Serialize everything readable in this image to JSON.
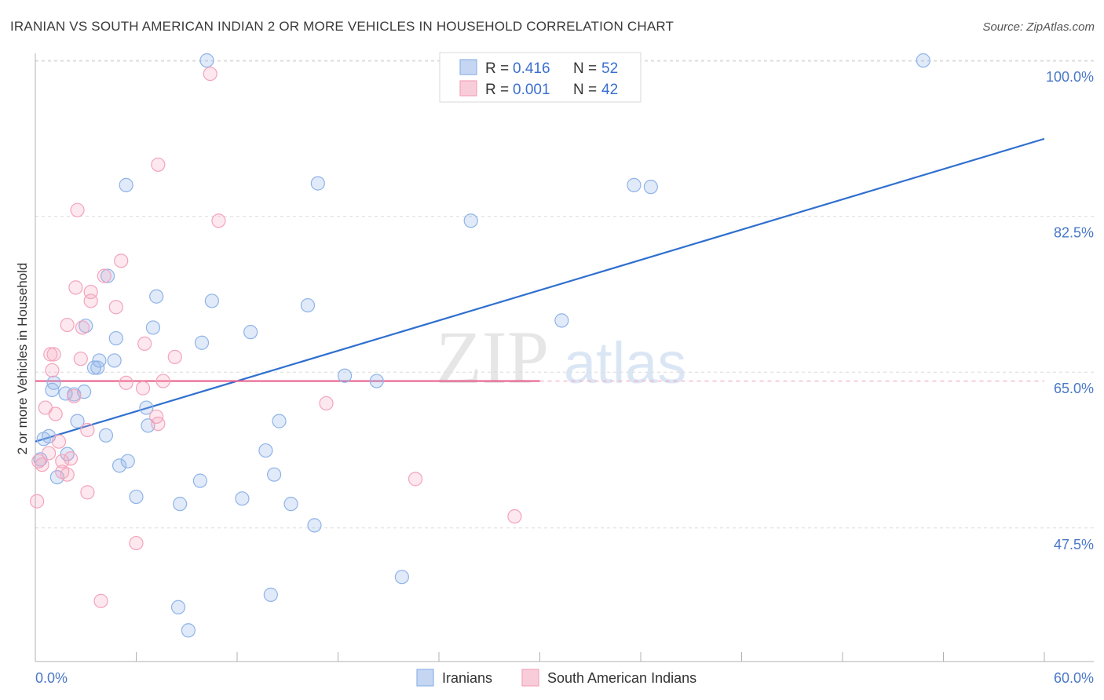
{
  "chart_data": {
    "type": "scatter",
    "title": "IRANIAN VS SOUTH AMERICAN INDIAN 2 OR MORE VEHICLES IN HOUSEHOLD CORRELATION CHART",
    "source": "Source: ZipAtlas.com",
    "watermark": "ZIPatlas",
    "xlabel": "",
    "ylabel": "2 or more Vehicles in Household",
    "xlim": [
      0,
      60
    ],
    "ylim": [
      32.5,
      101.5
    ],
    "x_tick_labels": {
      "min": "0.0%",
      "max": "60.0%"
    },
    "y_ticks": [
      47.5,
      65.0,
      82.5,
      100.0
    ],
    "y_tick_labels": [
      "47.5%",
      "65.0%",
      "82.5%",
      "100.0%"
    ],
    "grid": true,
    "legend_position": "top-center",
    "series": [
      {
        "name": "Iranians",
        "color": "#8fb3e8",
        "line_color": "#2f6fce",
        "r_label": "R =",
        "r_value": "0.416",
        "n_label": "N =",
        "n_value": "52",
        "trend": {
          "x0": 0,
          "y0": 57.2,
          "x1": 60,
          "y1": 91.2,
          "dashed_from": null
        },
        "points": [
          [
            10.2,
            100.0
          ],
          [
            52.8,
            100.0
          ],
          [
            5.4,
            86.0
          ],
          [
            16.8,
            86.2
          ],
          [
            35.6,
            86.0
          ],
          [
            36.6,
            85.8
          ],
          [
            25.9,
            82.0
          ],
          [
            4.3,
            75.8
          ],
          [
            7.2,
            73.5
          ],
          [
            10.5,
            73.0
          ],
          [
            16.2,
            72.5
          ],
          [
            31.3,
            70.8
          ],
          [
            3.0,
            70.2
          ],
          [
            7.0,
            70.0
          ],
          [
            12.8,
            69.5
          ],
          [
            4.8,
            68.8
          ],
          [
            9.9,
            68.3
          ],
          [
            3.8,
            66.3
          ],
          [
            4.7,
            66.3
          ],
          [
            3.5,
            65.5
          ],
          [
            3.7,
            65.5
          ],
          [
            18.4,
            64.6
          ],
          [
            20.3,
            64.0
          ],
          [
            1.1,
            63.8
          ],
          [
            1.0,
            63.0
          ],
          [
            1.8,
            62.6
          ],
          [
            2.3,
            62.5
          ],
          [
            2.9,
            62.8
          ],
          [
            6.6,
            61.0
          ],
          [
            2.5,
            59.5
          ],
          [
            6.7,
            59.0
          ],
          [
            14.5,
            59.5
          ],
          [
            0.5,
            57.5
          ],
          [
            0.8,
            57.8
          ],
          [
            4.2,
            57.9
          ],
          [
            1.9,
            55.8
          ],
          [
            13.7,
            56.2
          ],
          [
            0.3,
            55.2
          ],
          [
            5.5,
            55.0
          ],
          [
            5.0,
            54.5
          ],
          [
            1.3,
            53.2
          ],
          [
            14.2,
            53.5
          ],
          [
            9.8,
            52.8
          ],
          [
            6.0,
            51.0
          ],
          [
            12.3,
            50.8
          ],
          [
            8.6,
            50.2
          ],
          [
            15.2,
            50.2
          ],
          [
            16.6,
            47.8
          ],
          [
            21.8,
            42.0
          ],
          [
            14.0,
            40.0
          ],
          [
            8.5,
            38.6
          ],
          [
            9.1,
            36.0
          ]
        ]
      },
      {
        "name": "South American Indians",
        "color": "#f4a3bb",
        "line_color": "#e8628e",
        "r_label": "R =",
        "r_value": "0.001",
        "n_label": "N =",
        "n_value": "42",
        "trend": {
          "x0": 0,
          "y0": 64.0,
          "x1": 60,
          "y1": 64.0,
          "dashed_from": 30
        },
        "points": [
          [
            10.4,
            98.5
          ],
          [
            7.3,
            88.3
          ],
          [
            2.5,
            83.2
          ],
          [
            10.9,
            82.0
          ],
          [
            5.1,
            77.5
          ],
          [
            4.1,
            75.8
          ],
          [
            2.4,
            74.5
          ],
          [
            3.3,
            74.0
          ],
          [
            3.3,
            73.0
          ],
          [
            4.8,
            72.3
          ],
          [
            1.9,
            70.3
          ],
          [
            2.8,
            70.0
          ],
          [
            6.5,
            68.2
          ],
          [
            0.9,
            67.0
          ],
          [
            1.1,
            67.0
          ],
          [
            2.7,
            66.5
          ],
          [
            8.3,
            66.7
          ],
          [
            1.0,
            65.2
          ],
          [
            7.6,
            64.0
          ],
          [
            5.4,
            63.8
          ],
          [
            6.4,
            63.2
          ],
          [
            2.3,
            62.3
          ],
          [
            17.3,
            61.5
          ],
          [
            0.6,
            61.0
          ],
          [
            1.2,
            60.3
          ],
          [
            7.2,
            60.0
          ],
          [
            7.3,
            59.2
          ],
          [
            3.1,
            58.5
          ],
          [
            1.4,
            57.2
          ],
          [
            0.8,
            55.9
          ],
          [
            2.1,
            55.3
          ],
          [
            0.2,
            55.0
          ],
          [
            0.4,
            54.6
          ],
          [
            1.6,
            55.0
          ],
          [
            1.9,
            53.5
          ],
          [
            1.6,
            53.8
          ],
          [
            22.6,
            53.0
          ],
          [
            3.1,
            51.5
          ],
          [
            0.1,
            50.5
          ],
          [
            28.5,
            48.8
          ],
          [
            6.0,
            45.8
          ],
          [
            3.9,
            39.3
          ]
        ]
      }
    ]
  }
}
